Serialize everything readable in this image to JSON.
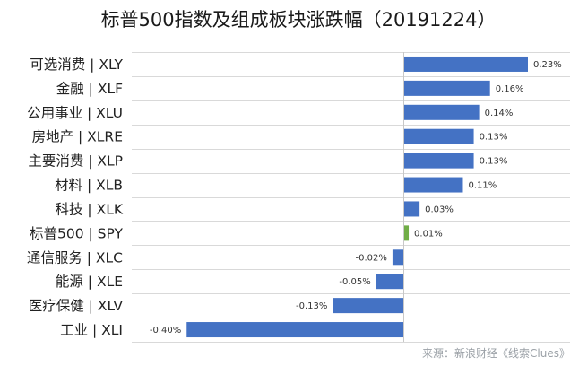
{
  "chart_data": {
    "type": "bar",
    "orientation": "horizontal",
    "title": "标普500指数及组成板块涨跌幅（20191224）",
    "categories": [
      "可选消费 | XLY",
      "金融 | XLF",
      "公用事业 | XLU",
      "房地产 | XLRE",
      "主要消费 | XLP",
      "材料 | XLB",
      "科技 | XLK",
      "标普500 | SPY",
      "通信服务 | XLC",
      "能源 | XLE",
      "医疗保健 | XLV",
      "工业 | XLI"
    ],
    "values": [
      0.23,
      0.16,
      0.14,
      0.13,
      0.13,
      0.11,
      0.03,
      0.01,
      -0.02,
      -0.05,
      -0.13,
      -0.4
    ],
    "data_labels": [
      "0.23%",
      "0.16%",
      "0.14%",
      "0.13%",
      "0.13%",
      "0.11%",
      "0.03%",
      "0.01%",
      "-0.02%",
      "-0.05%",
      "-0.13%",
      "-0.40%"
    ],
    "unit": "%",
    "xlim": [
      -0.5,
      0.3
    ],
    "highlight_category": "标普500 | SPY",
    "grid": true,
    "legend": "none",
    "colors": {
      "bar": "#4472c4",
      "highlight": "#70ad47"
    },
    "source": "来源：新浪财经《线索Clues》"
  }
}
